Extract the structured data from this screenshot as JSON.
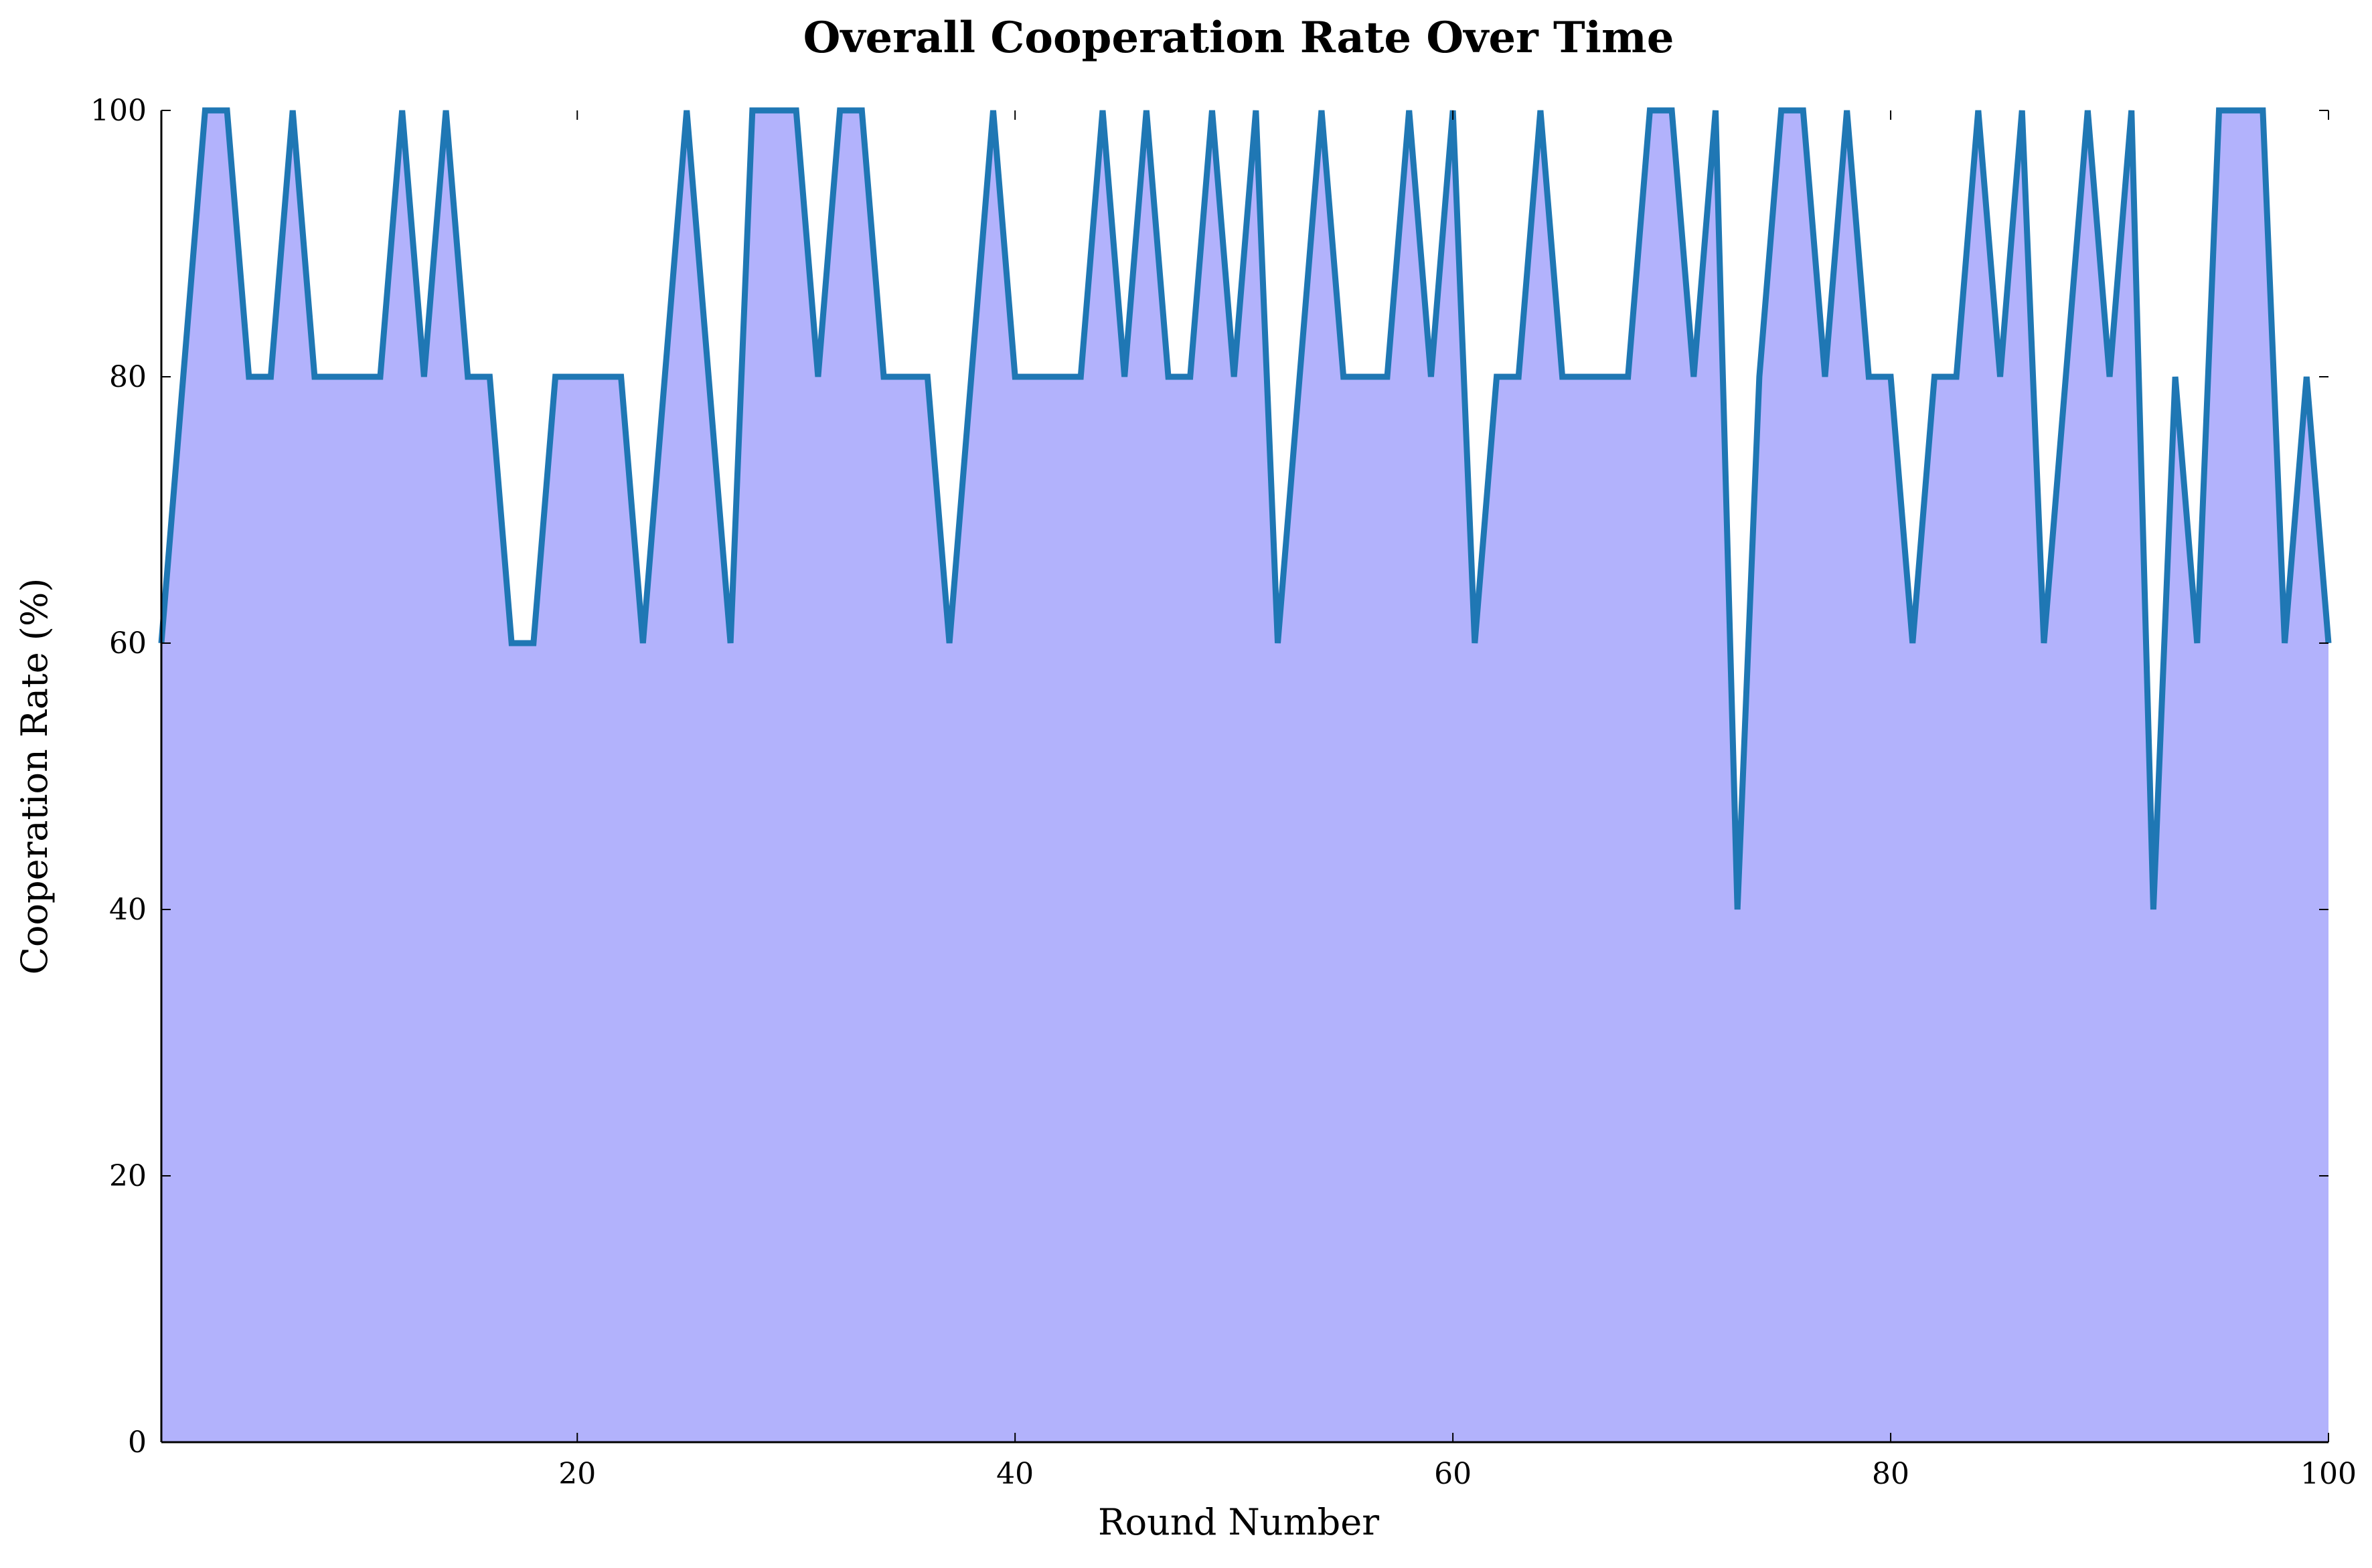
{
  "chart_data": {
    "type": "area",
    "title": "Overall Cooperation Rate Over Time",
    "xlabel": "Round Number",
    "ylabel": "Cooperation Rate (%)",
    "xlim": [
      1,
      100
    ],
    "ylim": [
      0,
      100
    ],
    "xticks": [
      20,
      40,
      60,
      80,
      100
    ],
    "yticks": [
      0,
      20,
      40,
      60,
      80,
      100
    ],
    "grid": false,
    "colors": {
      "line": "#1f77b4",
      "fill": "#b2b2fc"
    },
    "series": [
      {
        "x": [
          1,
          2,
          3,
          4,
          5,
          6,
          7,
          8,
          9,
          10,
          11,
          12,
          13,
          14,
          15,
          16,
          17,
          18,
          19,
          20,
          21,
          22,
          23,
          24,
          25,
          26,
          27,
          28,
          29,
          30,
          31,
          32,
          33,
          34,
          35,
          36,
          37,
          38,
          39,
          40,
          41,
          42,
          43,
          44,
          45,
          46,
          47,
          48,
          49,
          50,
          51,
          52,
          53,
          54,
          55,
          56,
          57,
          58,
          59,
          60,
          61,
          62,
          63,
          64,
          65,
          66,
          67,
          68,
          69,
          70,
          71,
          72,
          73,
          74,
          75,
          76,
          77,
          78,
          79,
          80,
          81,
          82,
          83,
          84,
          85,
          86,
          87,
          88,
          89,
          90,
          91,
          92,
          93,
          94,
          95,
          96,
          97,
          98,
          99,
          100
        ],
        "values": [
          60,
          80,
          100,
          100,
          80,
          80,
          100,
          80,
          80,
          80,
          80,
          100,
          80,
          100,
          80,
          80,
          60,
          60,
          80,
          80,
          80,
          80,
          60,
          80,
          100,
          80,
          60,
          100,
          100,
          100,
          80,
          100,
          100,
          80,
          80,
          80,
          60,
          80,
          100,
          80,
          80,
          80,
          80,
          100,
          80,
          100,
          80,
          80,
          100,
          80,
          100,
          60,
          80,
          100,
          80,
          80,
          80,
          100,
          80,
          100,
          60,
          80,
          80,
          100,
          80,
          80,
          80,
          80,
          100,
          100,
          80,
          100,
          40,
          80,
          100,
          100,
          80,
          100,
          80,
          80,
          60,
          80,
          80,
          100,
          80,
          100,
          60,
          80,
          100,
          80,
          100,
          40,
          80,
          60,
          100,
          100,
          100,
          60,
          80,
          60
        ]
      }
    ]
  }
}
